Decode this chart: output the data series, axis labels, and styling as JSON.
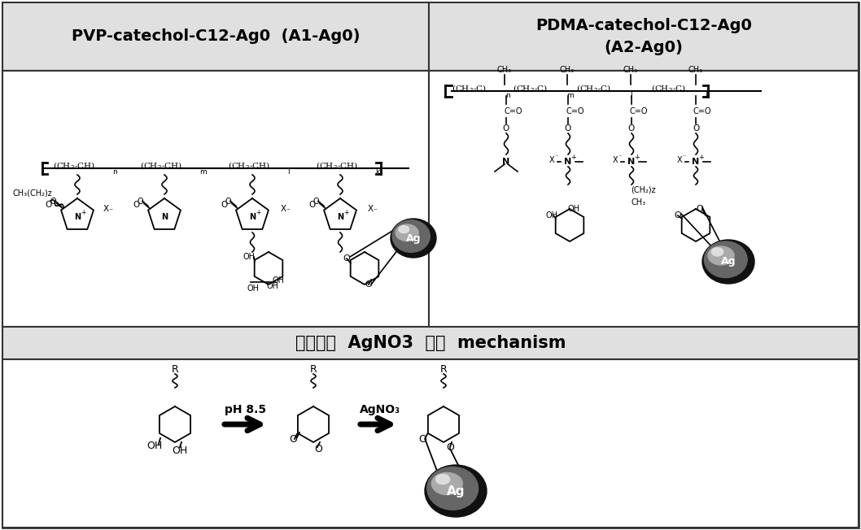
{
  "title_left": "PVP-catechol-C12-Ag0  (A1-Ag0)",
  "title_right": "PDMA-catechol-C12-Ag0\n(A2-Ag0)",
  "bottom_title": "커테콜의  AgNO3  환원  mechanism",
  "bg_header": "#e8e8e8",
  "white": "#ffffff",
  "black": "#000000"
}
